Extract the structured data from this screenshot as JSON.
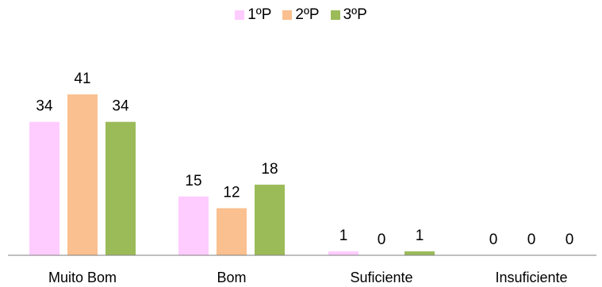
{
  "chart_data": {
    "type": "bar",
    "categories": [
      "Muito Bom",
      "Bom",
      "Suficiente",
      "Insuficiente"
    ],
    "series": [
      {
        "name": "1ºP",
        "color": "#ffccff",
        "values": [
          34,
          15,
          1,
          0
        ]
      },
      {
        "name": "2ºP",
        "color": "#fac090",
        "values": [
          41,
          12,
          0,
          0
        ]
      },
      {
        "name": "3ºP",
        "color": "#9bbb59",
        "values": [
          34,
          18,
          1,
          0
        ]
      }
    ],
    "ylim": [
      0,
      45
    ],
    "grid": false,
    "legend_position": "top"
  }
}
